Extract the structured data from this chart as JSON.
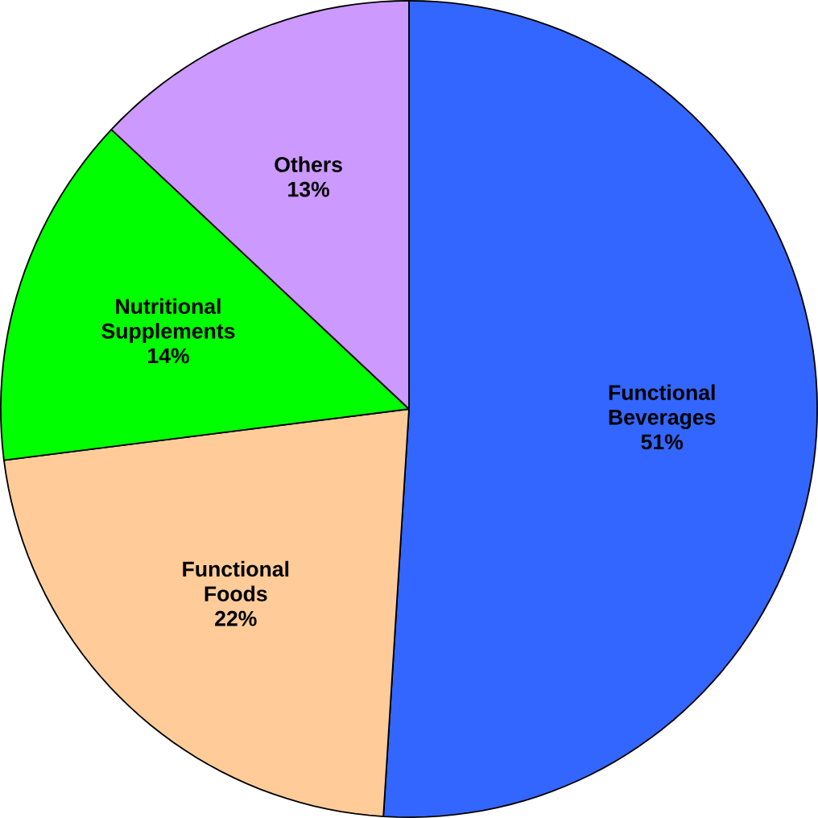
{
  "chart_data": {
    "type": "pie",
    "categories": [
      "Functional Beverages",
      "Functional Foods",
      "Nutritional Supplements",
      "Others"
    ],
    "values": [
      51,
      22,
      14,
      13
    ],
    "colors": [
      "#3366ff",
      "#ffcc99",
      "#00ff00",
      "#cc99ff"
    ],
    "value_labels": [
      "51%",
      "22%",
      "14%",
      "13%"
    ]
  }
}
